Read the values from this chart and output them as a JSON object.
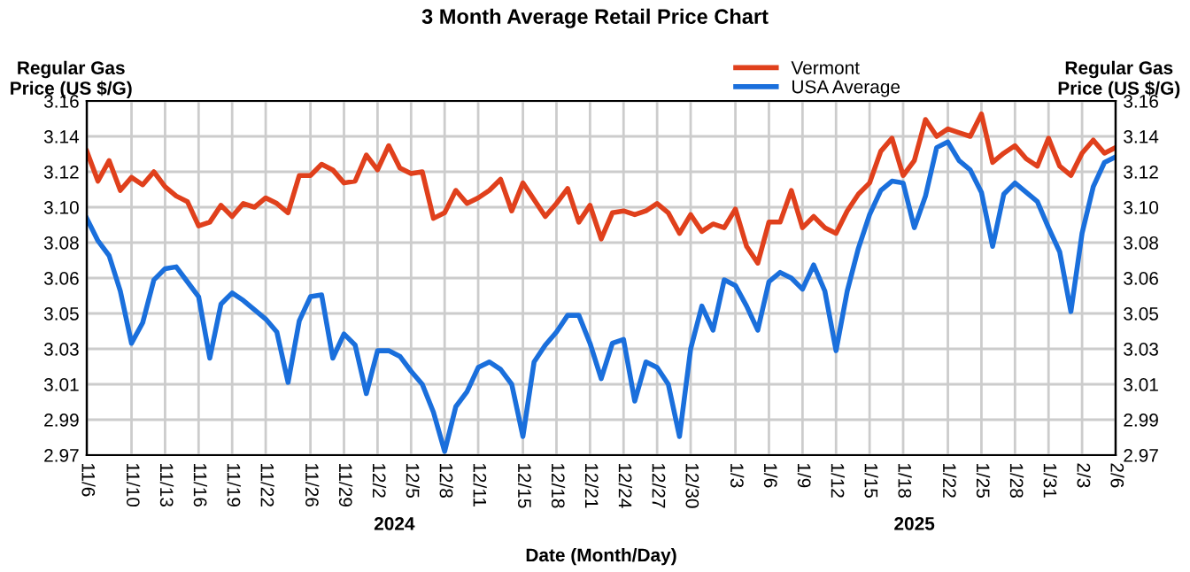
{
  "chart_data": {
    "type": "line",
    "title": "3 Month Average Retail Price Chart",
    "xlabel": "Date (Month/Day)",
    "ylabel": "Regular Gas\nPrice (US $/G)",
    "y2label": "Regular Gas\nPrice (US $/G)",
    "x": [
      "2024-11-06",
      "2024-11-07",
      "2024-11-08",
      "2024-11-09",
      "2024-11-10",
      "2024-11-11",
      "2024-11-12",
      "2024-11-13",
      "2024-11-14",
      "2024-11-15",
      "2024-11-16",
      "2024-11-17",
      "2024-11-18",
      "2024-11-19",
      "2024-11-20",
      "2024-11-21",
      "2024-11-22",
      "2024-11-23",
      "2024-11-24",
      "2024-11-25",
      "2024-11-26",
      "2024-11-27",
      "2024-11-28",
      "2024-11-29",
      "2024-11-30",
      "2024-12-01",
      "2024-12-02",
      "2024-12-03",
      "2024-12-04",
      "2024-12-05",
      "2024-12-06",
      "2024-12-07",
      "2024-12-08",
      "2024-12-09",
      "2024-12-10",
      "2024-12-11",
      "2024-12-12",
      "2024-12-13",
      "2024-12-14",
      "2024-12-15",
      "2024-12-16",
      "2024-12-17",
      "2024-12-18",
      "2024-12-19",
      "2024-12-20",
      "2024-12-21",
      "2024-12-22",
      "2024-12-23",
      "2024-12-24",
      "2024-12-25",
      "2024-12-26",
      "2024-12-27",
      "2024-12-28",
      "2024-12-29",
      "2024-12-30",
      "2024-12-31",
      "2025-01-01",
      "2025-01-02",
      "2025-01-03",
      "2025-01-04",
      "2025-01-05",
      "2025-01-06",
      "2025-01-07",
      "2025-01-08",
      "2025-01-09",
      "2025-01-10",
      "2025-01-11",
      "2025-01-12",
      "2025-01-13",
      "2025-01-14",
      "2025-01-15",
      "2025-01-16",
      "2025-01-17",
      "2025-01-18",
      "2025-01-19",
      "2025-01-20",
      "2025-01-21",
      "2025-01-22",
      "2025-01-23",
      "2025-01-24",
      "2025-01-25",
      "2025-01-26",
      "2025-01-27",
      "2025-01-28",
      "2025-01-29",
      "2025-01-30",
      "2025-01-31",
      "2025-02-01",
      "2025-02-02",
      "2025-02-03",
      "2025-02-04",
      "2025-02-05",
      "2025-02-06"
    ],
    "series": [
      {
        "name": "Vermont",
        "color": "#e0401c",
        "values": [
          3.133,
          3.117,
          3.128,
          3.112,
          3.119,
          3.115,
          3.122,
          3.114,
          3.109,
          3.106,
          3.093,
          3.095,
          3.104,
          3.098,
          3.105,
          3.103,
          3.108,
          3.105,
          3.1,
          3.12,
          3.12,
          3.126,
          3.123,
          3.116,
          3.117,
          3.131,
          3.123,
          3.136,
          3.124,
          3.121,
          3.122,
          3.097,
          3.1,
          3.112,
          3.105,
          3.108,
          3.112,
          3.118,
          3.101,
          3.116,
          3.107,
          3.098,
          3.105,
          3.113,
          3.095,
          3.104,
          3.086,
          3.1,
          3.101,
          3.099,
          3.101,
          3.105,
          3.1,
          3.089,
          3.099,
          3.09,
          3.094,
          3.092,
          3.102,
          3.082,
          3.073,
          3.095,
          3.095,
          3.112,
          3.092,
          3.098,
          3.092,
          3.089,
          3.101,
          3.11,
          3.116,
          3.133,
          3.14,
          3.12,
          3.128,
          3.15,
          3.141,
          3.145,
          3.143,
          3.141,
          3.153,
          3.127,
          3.132,
          3.136,
          3.129,
          3.125,
          3.14,
          3.125,
          3.12,
          3.132,
          3.139,
          3.132,
          3.135
        ]
      },
      {
        "name": "USA Average",
        "color": "#1a6fdc",
        "values": [
          3.097,
          3.085,
          3.077,
          3.058,
          3.03,
          3.041,
          3.064,
          3.07,
          3.071,
          3.063,
          3.055,
          3.022,
          3.051,
          3.057,
          3.053,
          3.048,
          3.043,
          3.036,
          3.009,
          3.042,
          3.055,
          3.056,
          3.022,
          3.035,
          3.029,
          3.003,
          3.026,
          3.026,
          3.023,
          3.015,
          3.008,
          2.993,
          2.972,
          2.996,
          3.004,
          3.017,
          3.02,
          3.016,
          3.008,
          2.98,
          3.02,
          3.029,
          3.036,
          3.045,
          3.045,
          3.03,
          3.011,
          3.03,
          3.032,
          2.999,
          3.02,
          3.017,
          3.008,
          2.98,
          3.027,
          3.05,
          3.037,
          3.064,
          3.061,
          3.05,
          3.037,
          3.063,
          3.068,
          3.065,
          3.059,
          3.072,
          3.058,
          3.026,
          3.058,
          3.081,
          3.099,
          3.112,
          3.117,
          3.116,
          3.092,
          3.109,
          3.135,
          3.138,
          3.128,
          3.123,
          3.111,
          3.082,
          3.11,
          3.116,
          3.111,
          3.106,
          3.092,
          3.079,
          3.047,
          3.089,
          3.114,
          3.127,
          3.13
        ]
      }
    ],
    "xlim": [
      "2024-11-06",
      "2025-02-06"
    ],
    "xticks": [
      {
        "value": "2024-11-06",
        "label": "11/6"
      },
      {
        "value": "2024-11-10",
        "label": "11/10"
      },
      {
        "value": "2024-11-13",
        "label": "11/13"
      },
      {
        "value": "2024-11-16",
        "label": "11/16"
      },
      {
        "value": "2024-11-19",
        "label": "11/19"
      },
      {
        "value": "2024-11-22",
        "label": "11/22"
      },
      {
        "value": "2024-11-26",
        "label": "11/26"
      },
      {
        "value": "2024-11-29",
        "label": "11/29"
      },
      {
        "value": "2024-12-02",
        "label": "12/2"
      },
      {
        "value": "2024-12-05",
        "label": "12/5"
      },
      {
        "value": "2024-12-08",
        "label": "12/8"
      },
      {
        "value": "2024-12-11",
        "label": "12/11"
      },
      {
        "value": "2024-12-15",
        "label": "12/15"
      },
      {
        "value": "2024-12-18",
        "label": "12/18"
      },
      {
        "value": "2024-12-21",
        "label": "12/21"
      },
      {
        "value": "2024-12-24",
        "label": "12/24"
      },
      {
        "value": "2024-12-27",
        "label": "12/27"
      },
      {
        "value": "2024-12-30",
        "label": "12/30"
      },
      {
        "value": "2025-01-03",
        "label": "1/3"
      },
      {
        "value": "2025-01-06",
        "label": "1/6"
      },
      {
        "value": "2025-01-09",
        "label": "1/9"
      },
      {
        "value": "2025-01-12",
        "label": "1/12"
      },
      {
        "value": "2025-01-15",
        "label": "1/15"
      },
      {
        "value": "2025-01-18",
        "label": "1/18"
      },
      {
        "value": "2025-01-22",
        "label": "1/22"
      },
      {
        "value": "2025-01-25",
        "label": "1/25"
      },
      {
        "value": "2025-01-28",
        "label": "1/28"
      },
      {
        "value": "2025-01-31",
        "label": "1/31"
      },
      {
        "value": "2025-02-03",
        "label": "2/3"
      },
      {
        "value": "2025-02-06",
        "label": "2/6"
      }
    ],
    "ylim": [
      2.97,
      3.16
    ],
    "yticks": [
      2.97,
      {
        "value": 2.989,
        "label": "2.99"
      },
      {
        "value": 3.008,
        "label": "3.01"
      },
      {
        "value": 3.027,
        "label": "3.03"
      },
      {
        "value": 3.046,
        "label": "3.05"
      },
      {
        "value": 3.065,
        "label": "3.06"
      },
      {
        "value": 3.084,
        "label": "3.08"
      },
      {
        "value": 3.103,
        "label": "3.10"
      },
      {
        "value": 3.122,
        "label": "3.12"
      },
      {
        "value": 3.141,
        "label": "3.14"
      },
      3.16
    ],
    "y2lim": [
      2.97,
      3.16
    ],
    "y2ticks": [
      2.97,
      {
        "value": 2.989,
        "label": "2.99"
      },
      {
        "value": 3.008,
        "label": "3.01"
      },
      {
        "value": 3.027,
        "label": "3.03"
      },
      {
        "value": 3.046,
        "label": "3.05"
      },
      {
        "value": 3.065,
        "label": "3.06"
      },
      {
        "value": 3.084,
        "label": "3.08"
      },
      {
        "value": 3.103,
        "label": "3.10"
      },
      {
        "value": 3.122,
        "label": "3.12"
      },
      {
        "value": 3.141,
        "label": "3.14"
      },
      3.16
    ],
    "annotations": [
      "2024",
      "2025"
    ],
    "grid": true,
    "legend": "top",
    "marker": "none",
    "line_style": "solid"
  }
}
